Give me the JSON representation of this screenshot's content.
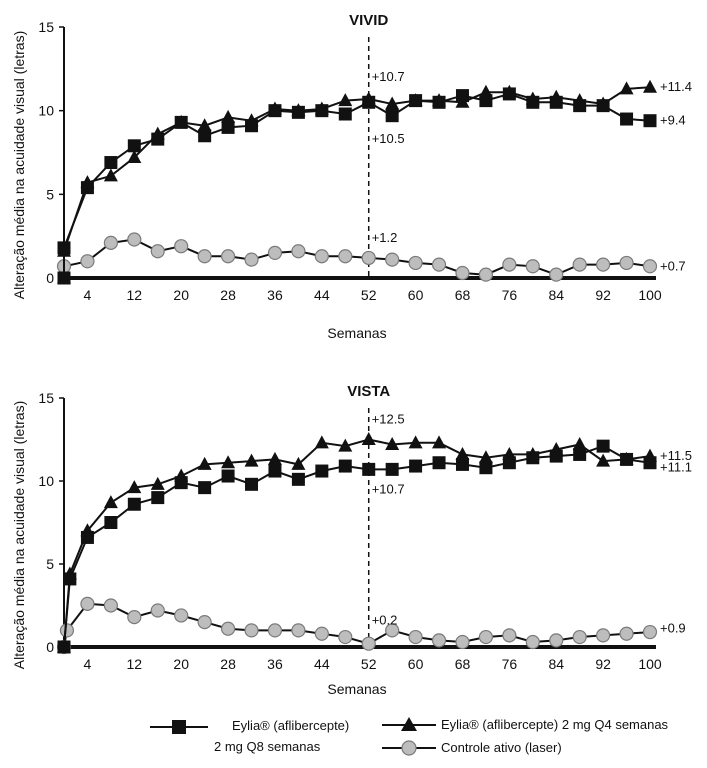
{
  "chart_data": [
    {
      "type": "line",
      "title": "VIVID",
      "xlabel": "Semanas",
      "ylabel": "Alteração média na acuidade visual (letras)",
      "x_ticks": [
        4,
        12,
        20,
        28,
        36,
        44,
        52,
        60,
        68,
        76,
        84,
        92,
        100
      ],
      "y_ticks": [
        0,
        5,
        10,
        15
      ],
      "xlim": [
        0,
        100
      ],
      "ylim": [
        0,
        15
      ],
      "reference_line_x": 52,
      "series": [
        {
          "name": "Eylia® (aflibercepte) 2 mg Q8 semanas",
          "marker": "square",
          "color": "#111111",
          "points": [
            [
              0,
              0
            ],
            [
              0,
              1.8
            ],
            [
              4,
              5.4
            ],
            [
              8,
              6.9
            ],
            [
              12,
              7.9
            ],
            [
              16,
              8.3
            ],
            [
              20,
              9.3
            ],
            [
              24,
              8.5
            ],
            [
              28,
              9.0
            ],
            [
              32,
              9.1
            ],
            [
              36,
              10.0
            ],
            [
              40,
              9.9
            ],
            [
              44,
              10.0
            ],
            [
              48,
              9.8
            ],
            [
              52,
              10.5
            ],
            [
              56,
              9.7
            ],
            [
              60,
              10.6
            ],
            [
              64,
              10.5
            ],
            [
              68,
              10.9
            ],
            [
              72,
              10.6
            ],
            [
              76,
              11.0
            ],
            [
              80,
              10.5
            ],
            [
              84,
              10.5
            ],
            [
              88,
              10.3
            ],
            [
              92,
              10.3
            ],
            [
              96,
              9.5
            ],
            [
              100,
              9.4
            ]
          ]
        },
        {
          "name": "Eylia® (aflibercepte) 2 mg Q4 semanas",
          "marker": "triangle",
          "color": "#111111",
          "points": [
            [
              0,
              0
            ],
            [
              0,
              1.6
            ],
            [
              4,
              5.7
            ],
            [
              8,
              6.1
            ],
            [
              12,
              7.2
            ],
            [
              16,
              8.6
            ],
            [
              20,
              9.3
            ],
            [
              24,
              9.1
            ],
            [
              28,
              9.6
            ],
            [
              32,
              9.4
            ],
            [
              36,
              10.1
            ],
            [
              40,
              10.0
            ],
            [
              44,
              10.1
            ],
            [
              48,
              10.6
            ],
            [
              52,
              10.7
            ],
            [
              56,
              10.4
            ],
            [
              60,
              10.6
            ],
            [
              64,
              10.6
            ],
            [
              68,
              10.5
            ],
            [
              72,
              11.1
            ],
            [
              76,
              11.1
            ],
            [
              80,
              10.7
            ],
            [
              84,
              10.8
            ],
            [
              88,
              10.6
            ],
            [
              92,
              10.4
            ],
            [
              96,
              11.3
            ],
            [
              100,
              11.4
            ]
          ]
        },
        {
          "name": "Controle ativo (laser)",
          "marker": "circle",
          "color": "#999999",
          "points": [
            [
              0,
              0.7
            ],
            [
              4,
              1.0
            ],
            [
              8,
              2.1
            ],
            [
              12,
              2.3
            ],
            [
              16,
              1.6
            ],
            [
              20,
              1.9
            ],
            [
              24,
              1.3
            ],
            [
              28,
              1.3
            ],
            [
              32,
              1.1
            ],
            [
              36,
              1.5
            ],
            [
              40,
              1.6
            ],
            [
              44,
              1.3
            ],
            [
              48,
              1.3
            ],
            [
              52,
              1.2
            ],
            [
              56,
              1.1
            ],
            [
              60,
              0.9
            ],
            [
              64,
              0.8
            ],
            [
              68,
              0.3
            ],
            [
              72,
              0.2
            ],
            [
              76,
              0.8
            ],
            [
              80,
              0.7
            ],
            [
              84,
              0.2
            ],
            [
              88,
              0.8
            ],
            [
              92,
              0.8
            ],
            [
              96,
              0.9
            ],
            [
              100,
              0.7
            ]
          ]
        }
      ],
      "annotations": [
        {
          "text": "+10.7",
          "x": 52,
          "y": 12.0
        },
        {
          "text": "+10.5",
          "x": 52,
          "y": 8.3
        },
        {
          "text": "+1.2",
          "x": 52,
          "y": 2.4
        },
        {
          "text": "+11.4",
          "x": 100,
          "y": 11.4
        },
        {
          "text": "+9.4",
          "x": 100,
          "y": 9.4
        },
        {
          "text": "+0.7",
          "x": 100,
          "y": 0.7
        }
      ]
    },
    {
      "type": "line",
      "title": "VISTA",
      "xlabel": "Semanas",
      "ylabel": "Alteração média na acuidade visual (letras)",
      "x_ticks": [
        4,
        12,
        20,
        28,
        36,
        44,
        52,
        60,
        68,
        76,
        84,
        92,
        100
      ],
      "y_ticks": [
        0,
        5,
        10,
        15
      ],
      "xlim": [
        0,
        100
      ],
      "ylim": [
        0,
        15
      ],
      "reference_line_x": 52,
      "series": [
        {
          "name": "Eylia® (aflibercepte) 2 mg Q8 semanas",
          "marker": "square",
          "color": "#111111",
          "points": [
            [
              0,
              0
            ],
            [
              1,
              4.1
            ],
            [
              4,
              6.6
            ],
            [
              8,
              7.5
            ],
            [
              12,
              8.6
            ],
            [
              16,
              9.0
            ],
            [
              20,
              9.9
            ],
            [
              24,
              9.6
            ],
            [
              28,
              10.3
            ],
            [
              32,
              9.8
            ],
            [
              36,
              10.6
            ],
            [
              40,
              10.1
            ],
            [
              44,
              10.6
            ],
            [
              48,
              10.9
            ],
            [
              52,
              10.7
            ],
            [
              56,
              10.7
            ],
            [
              60,
              10.9
            ],
            [
              64,
              11.1
            ],
            [
              68,
              11.0
            ],
            [
              72,
              10.8
            ],
            [
              76,
              11.1
            ],
            [
              80,
              11.4
            ],
            [
              84,
              11.5
            ],
            [
              88,
              11.6
            ],
            [
              92,
              12.1
            ],
            [
              96,
              11.3
            ],
            [
              100,
              11.1
            ]
          ]
        },
        {
          "name": "Eylia® (aflibercepte) 2 mg Q4 semanas",
          "marker": "triangle",
          "color": "#111111",
          "points": [
            [
              0,
              0
            ],
            [
              1,
              4.4
            ],
            [
              4,
              7.0
            ],
            [
              8,
              8.7
            ],
            [
              12,
              9.6
            ],
            [
              16,
              9.8
            ],
            [
              20,
              10.3
            ],
            [
              24,
              11.0
            ],
            [
              28,
              11.1
            ],
            [
              32,
              11.2
            ],
            [
              36,
              11.3
            ],
            [
              40,
              11.0
            ],
            [
              44,
              12.3
            ],
            [
              48,
              12.1
            ],
            [
              52,
              12.5
            ],
            [
              56,
              12.2
            ],
            [
              60,
              12.3
            ],
            [
              64,
              12.3
            ],
            [
              68,
              11.6
            ],
            [
              72,
              11.4
            ],
            [
              76,
              11.6
            ],
            [
              80,
              11.6
            ],
            [
              84,
              11.9
            ],
            [
              88,
              12.2
            ],
            [
              92,
              11.2
            ],
            [
              96,
              11.3
            ],
            [
              100,
              11.5
            ]
          ]
        },
        {
          "name": "Controle ativo (laser)",
          "marker": "circle",
          "color": "#999999",
          "points": [
            [
              0,
              0
            ],
            [
              0.5,
              1.0
            ],
            [
              4,
              2.6
            ],
            [
              8,
              2.5
            ],
            [
              12,
              1.8
            ],
            [
              16,
              2.2
            ],
            [
              20,
              1.9
            ],
            [
              24,
              1.5
            ],
            [
              28,
              1.1
            ],
            [
              32,
              1.0
            ],
            [
              36,
              1.0
            ],
            [
              40,
              1.0
            ],
            [
              44,
              0.8
            ],
            [
              48,
              0.6
            ],
            [
              52,
              0.2
            ],
            [
              56,
              1.0
            ],
            [
              60,
              0.6
            ],
            [
              64,
              0.4
            ],
            [
              68,
              0.3
            ],
            [
              72,
              0.6
            ],
            [
              76,
              0.7
            ],
            [
              80,
              0.3
            ],
            [
              84,
              0.4
            ],
            [
              88,
              0.6
            ],
            [
              92,
              0.7
            ],
            [
              96,
              0.8
            ],
            [
              100,
              0.9
            ]
          ]
        }
      ],
      "annotations": [
        {
          "text": "+12.5",
          "x": 52,
          "y": 13.7
        },
        {
          "text": "+10.7",
          "x": 52,
          "y": 9.5
        },
        {
          "text": "+0.2",
          "x": 52,
          "y": 1.6
        },
        {
          "text": "+11.5",
          "x": 100,
          "y": 11.5
        },
        {
          "text": "+11.1",
          "x": 100,
          "y": 10.8
        },
        {
          "text": "+0.9",
          "x": 100,
          "y": 1.1
        }
      ]
    }
  ],
  "legend": {
    "q8_line1": "Eylia® (aflibercepte)",
    "q8_line2": "2 mg Q8 semanas",
    "q4": "Eylia® (aflibercepte) 2 mg Q4 semanas",
    "laser": "Controle ativo (laser)"
  }
}
